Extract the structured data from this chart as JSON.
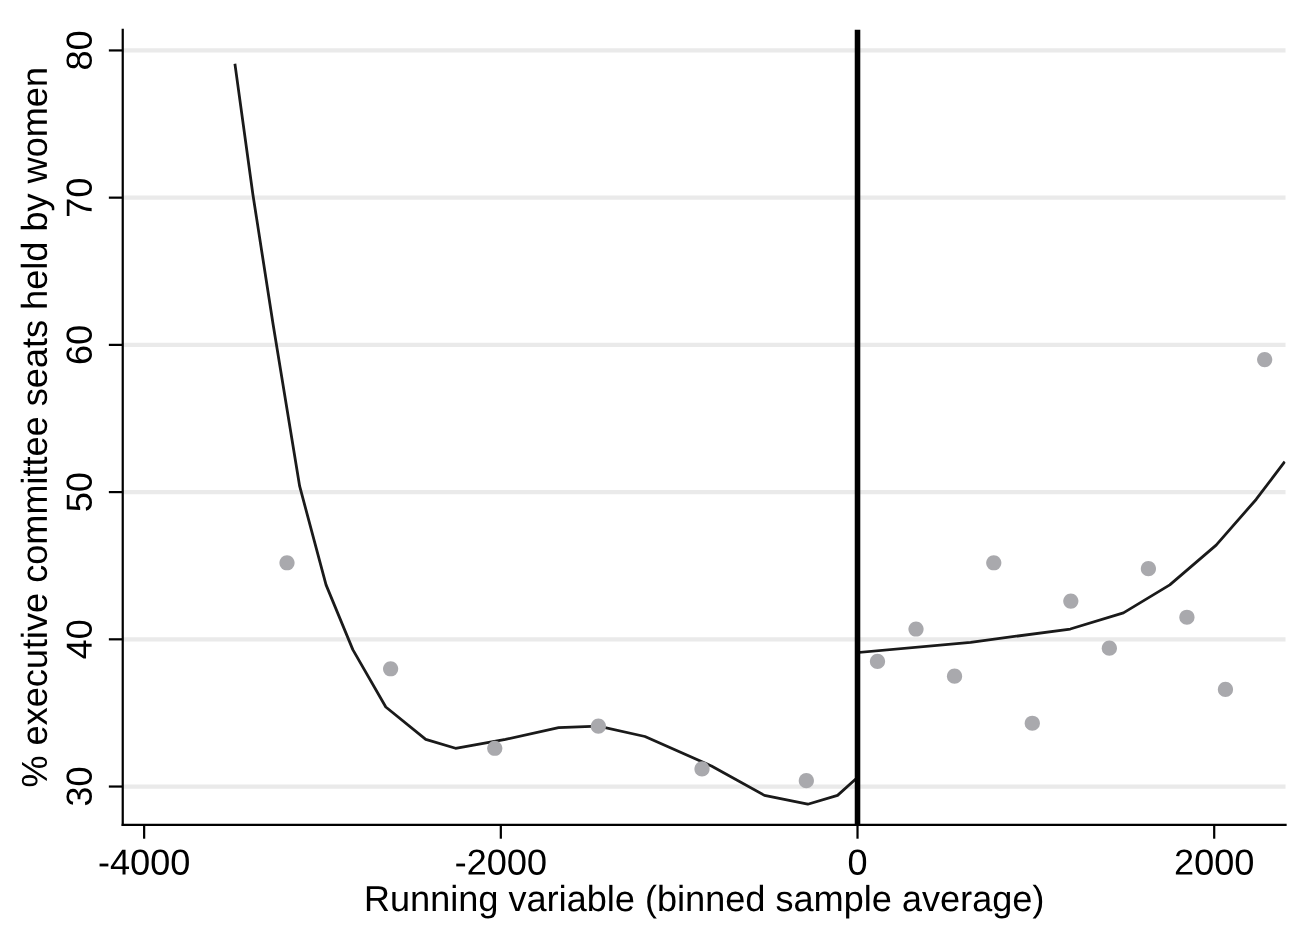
{
  "chart_data": {
    "type": "scatter",
    "xlabel": "Running variable (binned sample average)",
    "ylabel": "% executive committee seats held by women",
    "xlim": [
      -4120,
      2400
    ],
    "ylim": [
      27.4,
      81.4
    ],
    "xticks": [
      -4000,
      -2000,
      0,
      2000
    ],
    "yticks": [
      30,
      40,
      50,
      60,
      70,
      80
    ],
    "grid": "y",
    "marker": "circle",
    "ref_lines": [
      {
        "axis": "x",
        "value": 0,
        "color": "#000000",
        "line_style": "solid"
      }
    ],
    "series": [
      {
        "color": "#a9a9ad",
        "x": [
          -3199,
          -2618,
          -2034,
          -1453,
          -872,
          -287,
          112,
          328,
          544,
          764,
          980,
          1196,
          1412,
          1631,
          1847,
          2063,
          2283
        ],
        "values": [
          45.2,
          38.0,
          32.6,
          34.1,
          31.2,
          30.4,
          38.5,
          40.7,
          37.5,
          45.2,
          34.3,
          42.6,
          39.4,
          44.8,
          41.5,
          36.6,
          59.0
        ]
      },
      {
        "type": "line",
        "color": "#1a1a1a",
        "marker": "none",
        "x": [
          -3490,
          -3390,
          -3277,
          -3128,
          -2980,
          -2830,
          -2645,
          -2421,
          -2254,
          -1974,
          -1676,
          -1453,
          -1192,
          -819,
          -522,
          -279,
          -112,
          -11
        ],
        "values": [
          79.0,
          70.2,
          61.4,
          50.4,
          43.7,
          39.3,
          35.4,
          33.2,
          32.6,
          33.2,
          34.0,
          34.1,
          33.4,
          31.4,
          29.4,
          28.8,
          29.4,
          30.5
        ]
      },
      {
        "type": "line",
        "color": "#1a1a1a",
        "marker": "none",
        "x": [
          0,
          634,
          1193,
          1491,
          1751,
          2011,
          2235,
          2391
        ],
        "values": [
          39.1,
          39.8,
          40.7,
          41.8,
          43.7,
          46.4,
          49.5,
          52.0
        ]
      }
    ]
  }
}
